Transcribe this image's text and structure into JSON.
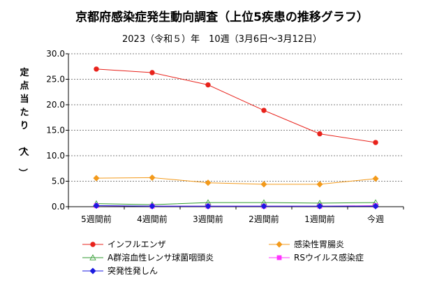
{
  "chart_data": {
    "type": "line",
    "title": "京都府感染症発生動向調査（上位5疾患の推移グラフ）",
    "subtitle": "2023（令和５）年　10週（3月6日～3月12日）",
    "ylabel": "定点当たり（人）",
    "xlabel": "",
    "categories": [
      "5週間前",
      "4週間前",
      "3週間前",
      "2週間前",
      "1週間前",
      "今週"
    ],
    "ylim": [
      0,
      30
    ],
    "yticks": [
      0,
      5,
      10,
      15,
      20,
      25,
      30
    ],
    "ytick_labels": [
      "0.0",
      "5.0",
      "10.0",
      "15.0",
      "20.0",
      "25.0",
      "30.0"
    ],
    "grid": "horizontal-dashed",
    "legend_position": "bottom",
    "series": [
      {
        "name": "インフルエンザ",
        "color": "#e8221b",
        "marker": "circle",
        "values": [
          27.0,
          26.3,
          23.9,
          18.9,
          14.3,
          12.6
        ]
      },
      {
        "name": "感染性胃腸炎",
        "color": "#f39a1b",
        "marker": "diamond",
        "values": [
          5.6,
          5.7,
          4.7,
          4.4,
          4.4,
          5.5
        ]
      },
      {
        "name": "A群溶血性レンサ球菌咽頭炎",
        "color": "#2e9a2e",
        "marker": "triangle",
        "values": [
          0.6,
          0.4,
          0.8,
          0.8,
          0.7,
          0.8
        ]
      },
      {
        "name": "RSウイルス感染症",
        "color": "#ff33ff",
        "marker": "square",
        "values": [
          0.2,
          0.1,
          0.1,
          0.1,
          0.1,
          0.2
        ]
      },
      {
        "name": "突発性発しん",
        "color": "#1a1ae0",
        "marker": "diamond",
        "values": [
          0.2,
          0.1,
          0.1,
          0.1,
          0.1,
          0.1
        ]
      }
    ]
  }
}
